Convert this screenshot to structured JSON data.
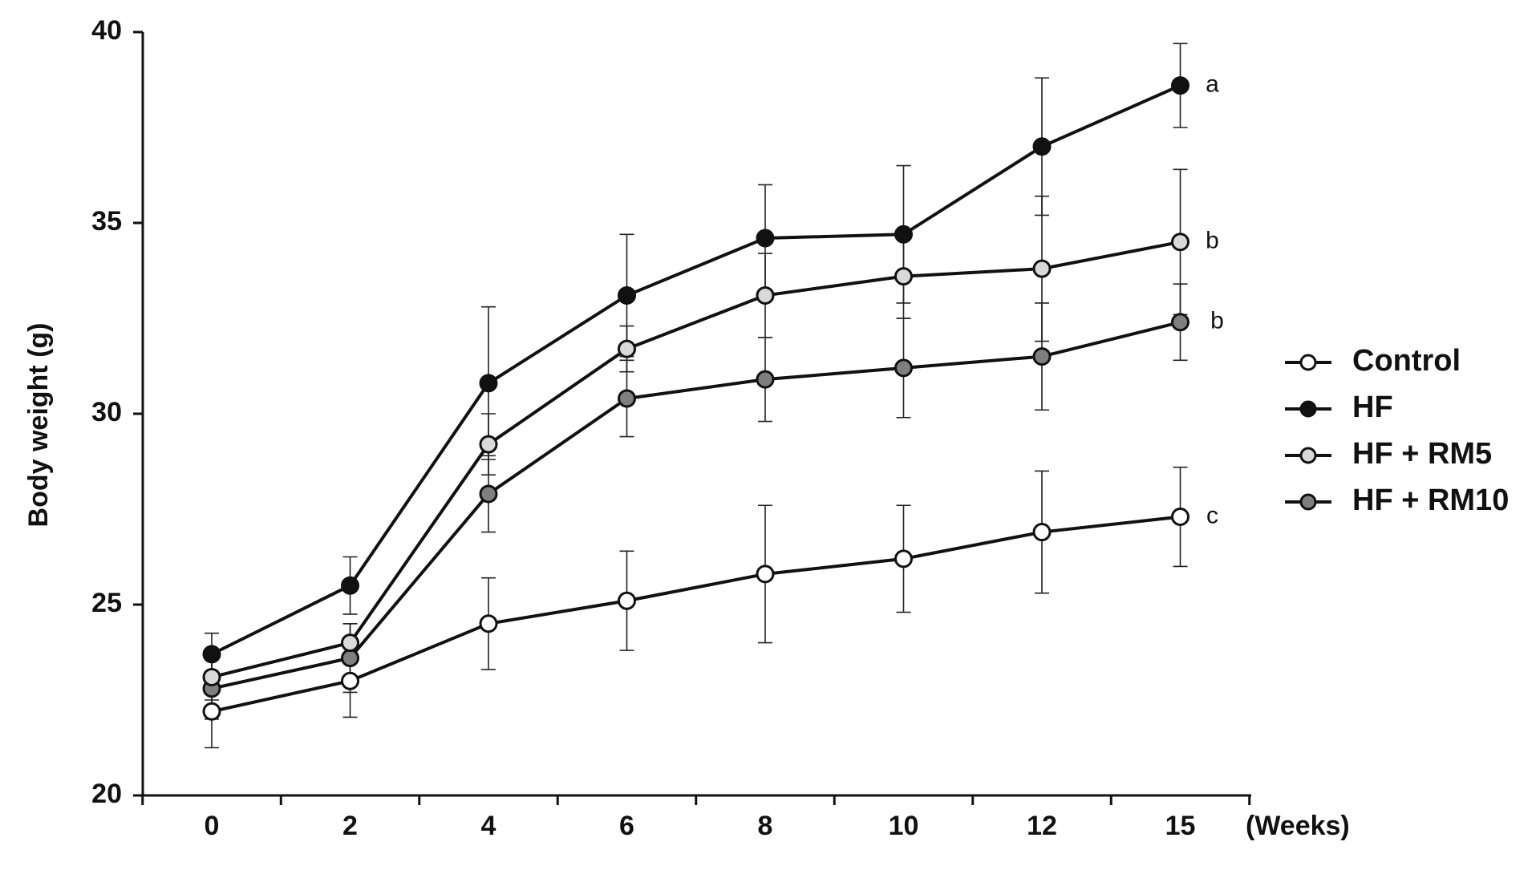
{
  "chart_data": {
    "type": "line",
    "xlabel": "(Weeks)",
    "ylabel": "Body weight (g)",
    "ylim": [
      20,
      40
    ],
    "yticks": [
      20,
      25,
      30,
      35,
      40
    ],
    "x": [
      0,
      2,
      4,
      6,
      8,
      10,
      12,
      15
    ],
    "x_tick_labels": [
      "0",
      "2",
      "4",
      "6",
      "8",
      "10",
      "12",
      "15"
    ],
    "legend_position": "right",
    "grid": false,
    "series": [
      {
        "name": "Control",
        "marker": "open-circle",
        "fill": "#ffffff",
        "values": [
          22.2,
          23.0,
          24.5,
          25.1,
          25.8,
          26.2,
          26.9,
          27.3
        ],
        "errors": [
          0.95,
          0.95,
          1.2,
          1.3,
          1.8,
          1.4,
          1.6,
          1.3
        ],
        "label": "c"
      },
      {
        "name": "HF",
        "marker": "filled-circle",
        "fill": "#111111",
        "values": [
          23.7,
          25.5,
          30.8,
          33.1,
          34.6,
          34.7,
          37.0,
          38.6
        ],
        "errors": [
          0.55,
          0.75,
          2.0,
          1.6,
          1.4,
          1.8,
          1.8,
          1.1
        ],
        "label": "a"
      },
      {
        "name": "HF + RM5",
        "marker": "filled-circle",
        "fill": "#d9d9d9",
        "values": [
          23.1,
          24.0,
          29.2,
          31.7,
          33.1,
          33.6,
          33.8,
          34.5
        ],
        "errors": [
          0.6,
          0.5,
          0.8,
          0.6,
          1.1,
          1.1,
          1.9,
          1.9
        ],
        "label": "b"
      },
      {
        "name": "HF + RM10",
        "marker": "filled-circle",
        "fill": "#7f7f7f",
        "values": [
          22.8,
          23.6,
          27.9,
          30.4,
          30.9,
          31.2,
          31.5,
          32.4
        ],
        "errors": [
          0.8,
          0.9,
          1.0,
          1.0,
          1.1,
          1.3,
          1.4,
          1.0
        ],
        "label": "b"
      }
    ]
  }
}
